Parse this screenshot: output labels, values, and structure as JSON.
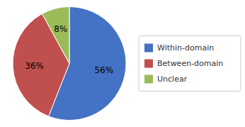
{
  "chart_data": {
    "type": "pie",
    "categories": [
      "Within-domain",
      "Between-domain",
      "Unclear"
    ],
    "values": [
      56,
      36,
      8
    ],
    "value_labels": [
      "56%",
      "36%",
      "8%"
    ],
    "colors": [
      "#4472C4",
      "#C0504D",
      "#9BBB59"
    ],
    "data_labels": true,
    "legend": "right"
  }
}
